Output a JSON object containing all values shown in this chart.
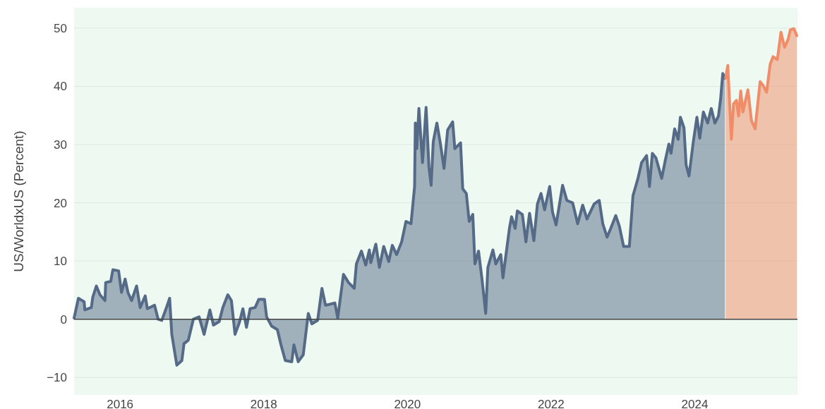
{
  "chart_data": {
    "type": "area",
    "ylabel": "US/WorldxUS (Percent)",
    "xlim": [
      2015.36,
      2025.43
    ],
    "xticks": [
      2016,
      2018,
      2020,
      2022,
      2024
    ],
    "ylim": [
      -13,
      53.5
    ],
    "yticks": [
      {
        "value": -10,
        "label": "−10"
      },
      0,
      10,
      20,
      30,
      40,
      50
    ],
    "grid": "y",
    "series": [
      {
        "color": "#546a87",
        "x": [
          2015.36,
          2015.42,
          2015.5,
          2015.51,
          2015.6,
          2015.62,
          2015.67,
          2015.72,
          2015.79,
          2015.8,
          2015.87,
          2015.9,
          2015.98,
          2016.02,
          2016.07,
          2016.11,
          2016.16,
          2016.23,
          2016.28,
          2016.35,
          2016.38,
          2016.48,
          2016.53,
          2016.58,
          2016.64,
          2016.69,
          2016.72,
          2016.79,
          2016.86,
          2016.89,
          2016.95,
          2017.02,
          2017.1,
          2017.17,
          2017.25,
          2017.3,
          2017.38,
          2017.43,
          2017.5,
          2017.55,
          2017.6,
          2017.66,
          2017.71,
          2017.76,
          2017.81,
          2017.88,
          2017.93,
          2018.01,
          2018.04,
          2018.11,
          2018.19,
          2018.24,
          2018.3,
          2018.39,
          2018.42,
          2018.48,
          2018.55,
          2018.62,
          2018.67,
          2018.75,
          2018.81,
          2018.86,
          2018.93,
          2018.99,
          2019.03,
          2019.11,
          2019.18,
          2019.26,
          2019.29,
          2019.36,
          2019.42,
          2019.47,
          2019.49,
          2019.56,
          2019.61,
          2019.67,
          2019.74,
          2019.79,
          2019.85,
          2019.92,
          2019.98,
          2020.05,
          2020.1,
          2020.11,
          2020.13,
          2020.16,
          2020.21,
          2020.26,
          2020.3,
          2020.33,
          2020.36,
          2020.41,
          2020.46,
          2020.51,
          2020.56,
          2020.63,
          2020.66,
          2020.74,
          2020.77,
          2020.82,
          2020.86,
          2020.91,
          2020.94,
          2020.99,
          2021.04,
          2021.09,
          2021.12,
          2021.19,
          2021.23,
          2021.3,
          2021.33,
          2021.42,
          2021.45,
          2021.5,
          2021.53,
          2021.6,
          2021.65,
          2021.7,
          2021.76,
          2021.81,
          2021.86,
          2021.91,
          2021.98,
          2022.02,
          2022.07,
          2022.16,
          2022.22,
          2022.3,
          2022.37,
          2022.44,
          2022.5,
          2022.6,
          2022.67,
          2022.72,
          2022.78,
          2022.83,
          2022.9,
          2022.95,
          2023.01,
          2023.09,
          2023.14,
          2023.21,
          2023.26,
          2023.33,
          2023.37,
          2023.41,
          2023.46,
          2023.54,
          2023.59,
          2023.64,
          2023.67,
          2023.72,
          2023.77,
          2023.8,
          2023.85,
          2023.88,
          2023.92,
          2023.98,
          2024.03,
          2024.07,
          2024.12,
          2024.18,
          2024.23,
          2024.28,
          2024.33,
          2024.36,
          2024.39,
          2024.42
        ],
        "values": [
          0.2,
          3.6,
          3.0,
          1.6,
          2.0,
          3.8,
          5.7,
          4.2,
          3.2,
          6.3,
          6.5,
          8.5,
          8.3,
          4.6,
          6.9,
          4.6,
          3.2,
          5.7,
          2.0,
          4.0,
          1.8,
          2.4,
          0,
          -0.2,
          1.8,
          3.6,
          -2.6,
          -7.9,
          -7.1,
          -4.2,
          -3.6,
          0,
          0.4,
          -2.6,
          1.6,
          -1.0,
          -0.4,
          2.0,
          4.2,
          3.2,
          -2.6,
          -0.6,
          1.8,
          -1.4,
          1.8,
          2.0,
          3.4,
          3.4,
          0.4,
          -1.2,
          -1.8,
          -4.4,
          -7.1,
          -7.3,
          -4.4,
          -7.3,
          -6.1,
          1.0,
          -0.8,
          -0.2,
          5.3,
          2.4,
          2.6,
          2.8,
          0.2,
          7.7,
          6.3,
          5.3,
          9.5,
          11.7,
          9.3,
          11.9,
          9.7,
          12.9,
          8.9,
          12.5,
          9.9,
          12.7,
          11.1,
          13.3,
          16.8,
          16.4,
          22.8,
          33.7,
          29.3,
          36.2,
          26.9,
          36.4,
          26.1,
          23.0,
          30.5,
          33.7,
          30.1,
          25.9,
          32.5,
          33.9,
          29.3,
          30.3,
          22.4,
          21.6,
          16.8,
          18.0,
          9.5,
          11.7,
          6.7,
          1.0,
          8.9,
          11.9,
          9.5,
          11.1,
          7.1,
          15.6,
          17.6,
          15.6,
          18.6,
          18.0,
          13.3,
          18.2,
          13.5,
          19.8,
          21.6,
          18.8,
          22.8,
          18.4,
          16.2,
          23.0,
          20.4,
          20.0,
          16.4,
          19.6,
          17.2,
          19.8,
          20.4,
          16.4,
          14.1,
          15.6,
          17.8,
          16.0,
          12.5,
          12.5,
          21.2,
          24.2,
          26.9,
          28.1,
          22.8,
          28.5,
          27.7,
          24.2,
          27.3,
          30.1,
          28.5,
          32.7,
          30.9,
          34.7,
          32.9,
          26.5,
          24.6,
          30.5,
          34.7,
          31.1,
          35.6,
          33.7,
          36.2,
          33.7,
          34.9,
          37.8,
          42.2,
          41.4
        ]
      },
      {
        "color": "#f08c68",
        "x": [
          2024.43,
          2024.46,
          2024.51,
          2024.54,
          2024.58,
          2024.61,
          2024.64,
          2024.67,
          2024.74,
          2024.79,
          2024.84,
          2024.91,
          2024.95,
          2025.0,
          2025.05,
          2025.09,
          2025.15,
          2025.2,
          2025.25,
          2025.3,
          2025.33,
          2025.38,
          2025.42
        ],
        "values": [
          41.4,
          43.6,
          30.9,
          37.0,
          37.6,
          34.9,
          39.2,
          35.6,
          39.4,
          34.1,
          32.7,
          40.8,
          40.2,
          39.0,
          43.8,
          45.1,
          44.6,
          49.3,
          46.7,
          48.1,
          49.7,
          49.9,
          48.7
        ]
      }
    ]
  }
}
